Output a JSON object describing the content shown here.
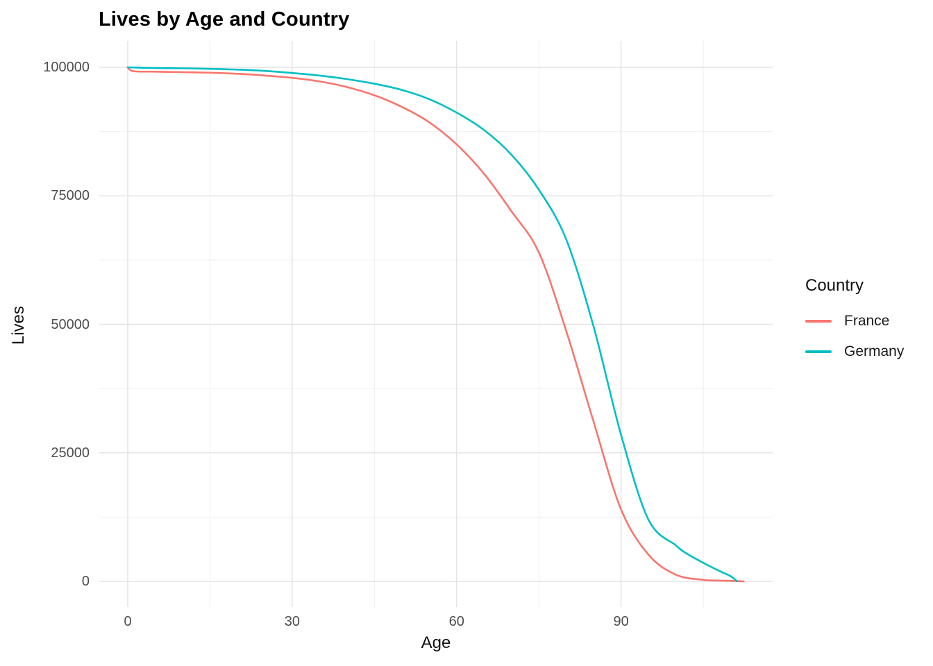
{
  "title": "Lives by Age and Country",
  "x_axis": {
    "title": "Age",
    "major_ticks": [
      0,
      30,
      60,
      90
    ],
    "tick_labels": [
      "0",
      "30",
      "60",
      "90"
    ],
    "minor_ticks": [
      15,
      45,
      75,
      105
    ]
  },
  "y_axis": {
    "title": "Lives",
    "major_ticks": [
      0,
      25000,
      50000,
      75000,
      100000
    ],
    "tick_labels": [
      "0",
      "25000",
      "50000",
      "75000",
      "100000"
    ],
    "minor_ticks": [
      12500,
      37500,
      62500,
      87500
    ]
  },
  "legend": {
    "title": "Country",
    "entries": [
      "France",
      "Germany"
    ]
  },
  "colors": {
    "france": "#F8766D",
    "germany": "#00BFC4",
    "grid_major": "#E4E4E4",
    "grid_minor": "#EFEFEF",
    "tick_label": "#4D4D4D",
    "title": "#000000"
  },
  "chart_data": {
    "type": "line",
    "title": "Lives by Age and Country",
    "xlabel": "Age",
    "ylabel": "Lives",
    "xlim": [
      0,
      112.4
    ],
    "ylim": [
      0,
      100000
    ],
    "x_ticks": [
      0,
      30,
      60,
      90
    ],
    "y_ticks": [
      0,
      25000,
      50000,
      75000,
      100000
    ],
    "grid": "major+minor",
    "legend_position": "right",
    "legend_title": "Country",
    "series": [
      {
        "name": "France",
        "color": "#F8766D",
        "points": [
          [
            0,
            100000
          ],
          [
            1,
            99250
          ],
          [
            5,
            99150
          ],
          [
            10,
            99050
          ],
          [
            15,
            98950
          ],
          [
            20,
            98750
          ],
          [
            25,
            98400
          ],
          [
            30,
            97950
          ],
          [
            35,
            97250
          ],
          [
            40,
            96150
          ],
          [
            45,
            94550
          ],
          [
            50,
            92300
          ],
          [
            55,
            89300
          ],
          [
            60,
            85000
          ],
          [
            65,
            79300
          ],
          [
            70,
            72000
          ],
          [
            75,
            64000
          ],
          [
            80,
            48700
          ],
          [
            85,
            31000
          ],
          [
            90,
            14000
          ],
          [
            95,
            5200
          ],
          [
            100,
            1300
          ],
          [
            105,
            300
          ],
          [
            108,
            150
          ],
          [
            110,
            100
          ],
          [
            112.4,
            0
          ]
        ]
      },
      {
        "name": "Germany",
        "color": "#00BFC4",
        "points": [
          [
            0,
            100000
          ],
          [
            5,
            99850
          ],
          [
            10,
            99800
          ],
          [
            15,
            99700
          ],
          [
            20,
            99550
          ],
          [
            25,
            99300
          ],
          [
            30,
            98900
          ],
          [
            35,
            98400
          ],
          [
            40,
            97700
          ],
          [
            45,
            96800
          ],
          [
            50,
            95600
          ],
          [
            55,
            93800
          ],
          [
            60,
            91200
          ],
          [
            65,
            87800
          ],
          [
            70,
            83000
          ],
          [
            75,
            76200
          ],
          [
            80,
            66500
          ],
          [
            85,
            49500
          ],
          [
            90,
            28500
          ],
          [
            95,
            12000
          ],
          [
            100,
            7000
          ],
          [
            102,
            5400
          ],
          [
            105,
            3600
          ],
          [
            108,
            2000
          ],
          [
            110,
            1000
          ],
          [
            111.2,
            0
          ]
        ]
      }
    ]
  }
}
